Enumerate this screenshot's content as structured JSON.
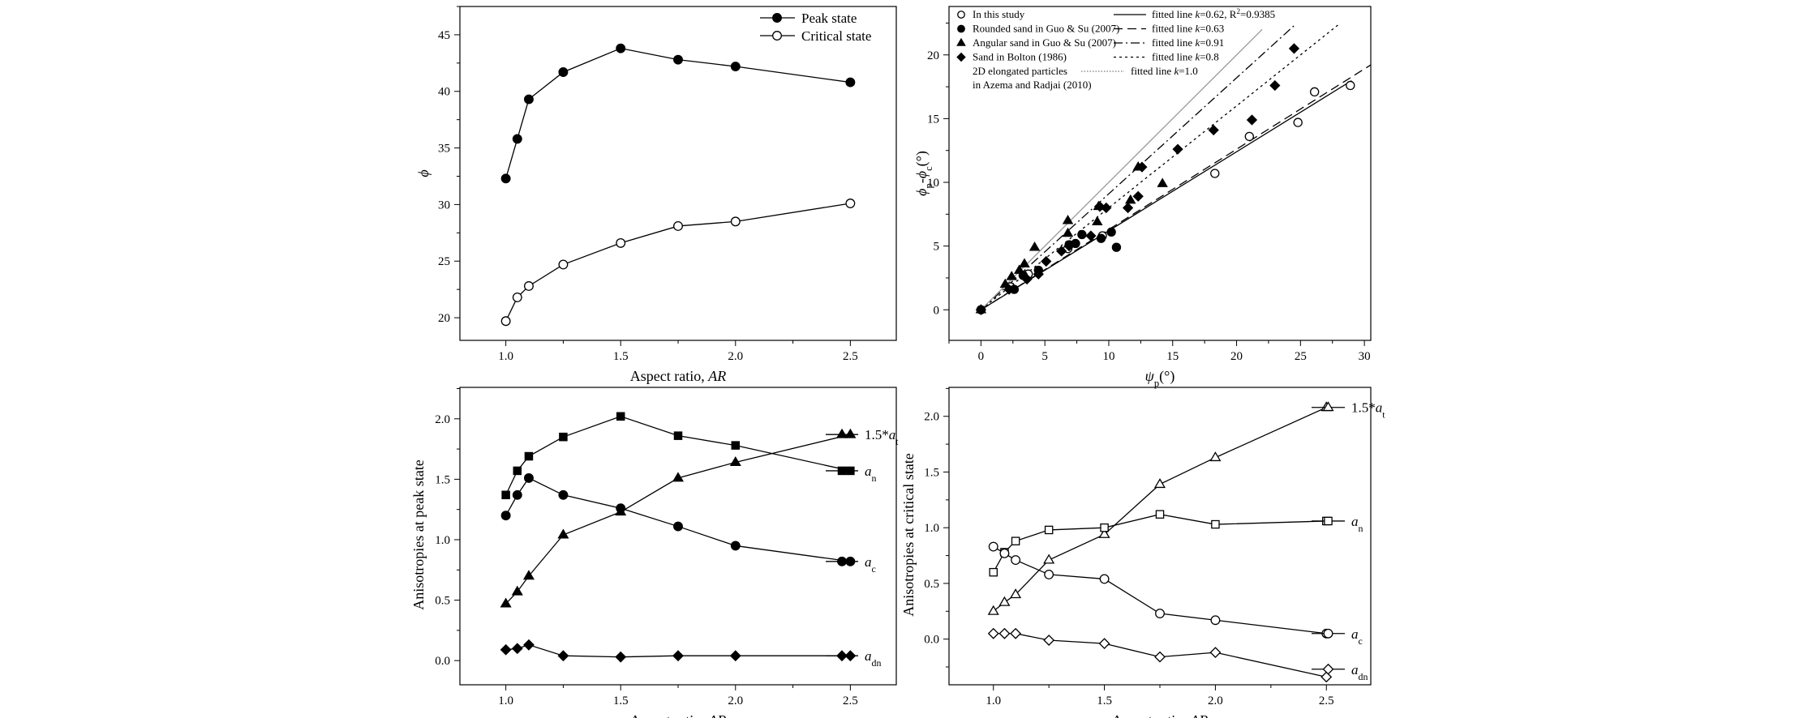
{
  "chart_data": [
    {
      "type": "line",
      "xlabel": "Aspect ratio, ",
      "xlabel_italic": "AR",
      "ylabel": "ϕ",
      "xlim": [
        0.8,
        2.7
      ],
      "ylim": [
        18,
        47.5
      ],
      "xticks": [
        "1.0",
        "1.5",
        "2.0",
        "2.5"
      ],
      "yticks": [
        "20",
        "25",
        "30",
        "35",
        "40",
        "45"
      ],
      "legend_position": "top-right",
      "series": [
        {
          "name": "Peak state",
          "marker": "filled-circle",
          "x": [
            1.0,
            1.05,
            1.1,
            1.25,
            1.5,
            1.75,
            2.0,
            2.5
          ],
          "y": [
            32.3,
            35.8,
            39.3,
            41.7,
            43.8,
            42.8,
            42.2,
            40.8
          ]
        },
        {
          "name": "Critical state",
          "marker": "open-circle",
          "x": [
            1.0,
            1.05,
            1.1,
            1.25,
            1.5,
            1.75,
            2.0,
            2.5
          ],
          "y": [
            19.7,
            21.8,
            22.8,
            24.7,
            26.6,
            28.1,
            28.5,
            30.1
          ]
        }
      ]
    },
    {
      "type": "scatter",
      "xlabel": "ψ",
      "xlabel_sub": "p",
      "xlabel_unit": "(°)",
      "ylabel_parts": [
        "ϕ",
        "p",
        "-ϕ",
        "c",
        "(°)"
      ],
      "xlim": [
        -2.5,
        30.5
      ],
      "ylim": [
        -2.4,
        23.8
      ],
      "xticks": [
        "0",
        "5",
        "10",
        "15",
        "20",
        "25",
        "30"
      ],
      "yticks": [
        "0",
        "5",
        "10",
        "15",
        "20"
      ],
      "legend": [
        {
          "marker": "open-circle",
          "label": "In this study",
          "fit": "fitted line k=0.62, R²=0.9385",
          "fit_prefix": "fitted line ",
          "k": "k",
          "fit_value": "=0.62, R",
          "sup": "2",
          "fit_tail": "=0.9385",
          "style": "solid"
        },
        {
          "marker": "filled-circle",
          "label": "Rounded sand in Guo & Su (2007)",
          "fit_prefix": "fitted line ",
          "k": "k",
          "fit_value": "=0.63",
          "style": "dash"
        },
        {
          "marker": "filled-triangle",
          "label": "Angular sand in Guo & Su (2007)",
          "fit_prefix": "fitted line ",
          "k": "k",
          "fit_value": "=0.91",
          "style": "dashdot"
        },
        {
          "marker": "filled-diamond",
          "label": "Sand in Bolton (1986)",
          "fit_prefix": "fitted line ",
          "k": "k",
          "fit_value": "=0.8",
          "style": "dot"
        },
        {
          "marker": "none",
          "label": "2D elongated particles",
          "label2": "in Azema and Radjai (2010)",
          "fit_prefix": "fitted line ",
          "k": "k",
          "fit_value": "=1.0",
          "style": "finedot"
        }
      ],
      "fit_lines": [
        {
          "slope": 0.62,
          "x_end": 29,
          "style": "solid",
          "color": "#000000"
        },
        {
          "slope": 0.63,
          "x_end": 30.5,
          "style": "dash",
          "color": "#000000"
        },
        {
          "slope": 0.91,
          "x_end": 24.5,
          "style": "dashdot",
          "color": "#000000"
        },
        {
          "slope": 0.8,
          "x_end": 28,
          "style": "dot",
          "color": "#000000"
        },
        {
          "slope": 1.0,
          "x_end": 22,
          "style": "solid",
          "color": "#9a9a9a"
        }
      ],
      "series": [
        {
          "name": "In this study",
          "marker": "open-circle",
          "points": [
            [
              0,
              0
            ],
            [
              2.3,
              1.8
            ],
            [
              3.7,
              2.8
            ],
            [
              6.8,
              4.8
            ],
            [
              9.5,
              5.8
            ],
            [
              18.3,
              10.7
            ],
            [
              21,
              13.6
            ],
            [
              24.8,
              14.7
            ],
            [
              26.1,
              17.1
            ],
            [
              28.9,
              17.6
            ]
          ]
        },
        {
          "name": "Rounded sand in Guo & Su (2007)",
          "marker": "filled-circle",
          "points": [
            [
              0,
              0
            ],
            [
              2.6,
              1.6
            ],
            [
              3.3,
              2.7
            ],
            [
              4.5,
              3.1
            ],
            [
              6.9,
              5.1
            ],
            [
              7.4,
              5.2
            ],
            [
              7.9,
              5.9
            ],
            [
              9.4,
              5.6
            ],
            [
              10.2,
              6.1
            ],
            [
              10.6,
              4.9
            ]
          ]
        },
        {
          "name": "Angular sand in Guo & Su (2007)",
          "marker": "filled-triangle",
          "points": [
            [
              0,
              0
            ],
            [
              1.9,
              2.0
            ],
            [
              2.4,
              2.6
            ],
            [
              3.0,
              3.1
            ],
            [
              3.4,
              3.6
            ],
            [
              4.2,
              4.9
            ],
            [
              6.8,
              6.0
            ],
            [
              6.8,
              7.0
            ],
            [
              9.1,
              6.9
            ],
            [
              9.2,
              8.1
            ],
            [
              11.7,
              8.6
            ],
            [
              12.3,
              11.2
            ],
            [
              14.2,
              9.9
            ]
          ]
        },
        {
          "name": "Sand in Bolton (1986)",
          "marker": "filled-diamond",
          "points": [
            [
              0,
              0
            ],
            [
              2.2,
              1.6
            ],
            [
              3.6,
              2.4
            ],
            [
              4.5,
              2.8
            ],
            [
              5.1,
              3.8
            ],
            [
              6.3,
              4.6
            ],
            [
              6.9,
              5.0
            ],
            [
              8.6,
              5.8
            ],
            [
              9.3,
              8.1
            ],
            [
              9.8,
              8.0
            ],
            [
              11.5,
              8.0
            ],
            [
              12.3,
              8.9
            ],
            [
              12.6,
              11.2
            ],
            [
              15.4,
              12.6
            ],
            [
              18.2,
              14.1
            ],
            [
              21.2,
              14.9
            ],
            [
              23,
              17.6
            ],
            [
              24.5,
              20.5
            ]
          ]
        }
      ]
    },
    {
      "type": "line",
      "xlabel": "Aspect ratio, ",
      "xlabel_italic": "AR",
      "ylabel": "Anisotropies at peak state",
      "xlim": [
        0.8,
        2.7
      ],
      "ylim": [
        -0.2,
        2.26
      ],
      "xticks": [
        "1.0",
        "1.5",
        "2.0",
        "2.5"
      ],
      "yticks": [
        "0.0",
        "0.5",
        "1.0",
        "1.5",
        "2.0"
      ],
      "series": [
        {
          "name": "1.5*",
          "name_italic": "a",
          "name_sub": "t",
          "marker": "filled-triangle",
          "x": [
            1.0,
            1.05,
            1.1,
            1.25,
            1.5,
            1.75,
            2.0,
            2.5
          ],
          "y": [
            0.47,
            0.57,
            0.7,
            1.04,
            1.23,
            1.51,
            1.64,
            1.87
          ]
        },
        {
          "name": "",
          "name_italic": "a",
          "name_sub": "n",
          "marker": "filled-square",
          "x": [
            1.0,
            1.05,
            1.1,
            1.25,
            1.5,
            1.75,
            2.0,
            2.5
          ],
          "y": [
            1.37,
            1.57,
            1.69,
            1.85,
            2.02,
            1.86,
            1.78,
            1.57
          ]
        },
        {
          "name": "",
          "name_italic": "a",
          "name_sub": "c",
          "marker": "filled-circle",
          "x": [
            1.0,
            1.05,
            1.1,
            1.25,
            1.5,
            1.75,
            2.0,
            2.5
          ],
          "y": [
            1.2,
            1.37,
            1.51,
            1.37,
            1.26,
            1.11,
            0.95,
            0.82
          ]
        },
        {
          "name": "",
          "name_italic": "a",
          "name_sub": "dn",
          "marker": "filled-diamond",
          "x": [
            1.0,
            1.05,
            1.1,
            1.25,
            1.5,
            1.75,
            2.0,
            2.5
          ],
          "y": [
            0.09,
            0.1,
            0.13,
            0.04,
            0.03,
            0.04,
            0.04,
            0.04
          ]
        }
      ]
    },
    {
      "type": "line",
      "xlabel": "Aspect ratio, ",
      "xlabel_italic": "AR",
      "ylabel": "Anisotropies at critical state",
      "xlim": [
        0.8,
        2.7
      ],
      "ylim": [
        -0.41,
        2.26
      ],
      "xticks": [
        "1.0",
        "1.5",
        "2.0",
        "2.5"
      ],
      "yticks": [
        "0.0",
        "0.5",
        "1.0",
        "1.5",
        "2.0"
      ],
      "series": [
        {
          "name": "1.5*",
          "name_italic": "a",
          "name_sub": "t",
          "marker": "open-triangle",
          "x": [
            1.0,
            1.05,
            1.1,
            1.25,
            1.5,
            1.75,
            2.0,
            2.5
          ],
          "y": [
            0.25,
            0.33,
            0.4,
            0.71,
            0.94,
            1.39,
            1.63,
            2.08
          ]
        },
        {
          "name": "",
          "name_italic": "a",
          "name_sub": "n",
          "marker": "open-square",
          "x": [
            1.0,
            1.05,
            1.1,
            1.25,
            1.5,
            1.75,
            2.0,
            2.5
          ],
          "y": [
            0.6,
            0.78,
            0.88,
            0.98,
            1.0,
            1.12,
            1.03,
            1.06
          ]
        },
        {
          "name": "",
          "name_italic": "a",
          "name_sub": "c",
          "marker": "open-circle",
          "x": [
            1.0,
            1.05,
            1.1,
            1.25,
            1.5,
            1.75,
            2.0,
            2.5
          ],
          "y": [
            0.83,
            0.77,
            0.71,
            0.58,
            0.54,
            0.23,
            0.17,
            0.05
          ]
        },
        {
          "name": "",
          "name_italic": "a",
          "name_sub": "dn",
          "marker": "open-diamond",
          "x": [
            1.0,
            1.05,
            1.1,
            1.25,
            1.5,
            1.75,
            2.0,
            2.5
          ],
          "y": [
            0.05,
            0.05,
            0.05,
            -0.01,
            -0.04,
            -0.16,
            -0.12,
            -0.34
          ]
        }
      ]
    }
  ]
}
